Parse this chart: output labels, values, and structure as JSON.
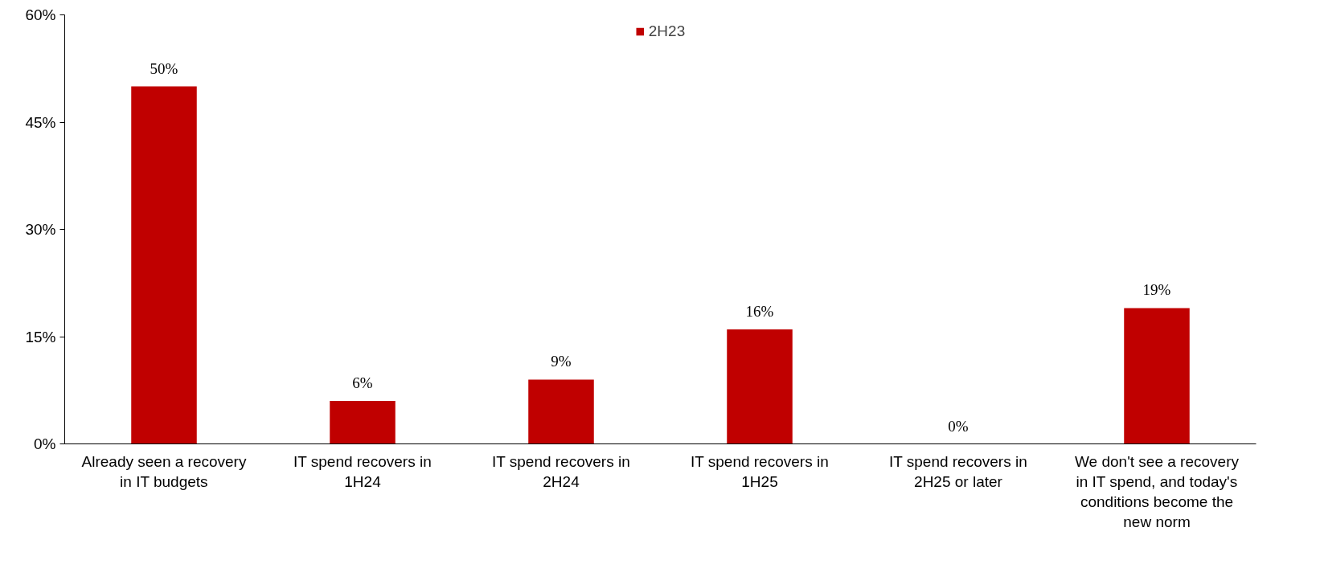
{
  "chart_data": {
    "type": "bar",
    "categories": [
      "Already seen a recovery in IT budgets",
      "IT spend recovers in 1H24",
      "IT spend recovers in 2H24",
      "IT spend recovers in 1H25",
      "IT spend recovers in 2H25 or later",
      "We don't see a recovery in IT spend, and today's conditions become the new norm"
    ],
    "series": [
      {
        "name": "2H23",
        "color": "#c00000",
        "values": [
          50,
          6,
          9,
          16,
          0,
          19
        ],
        "value_labels": [
          "50%",
          "6%",
          "9%",
          "16%",
          "0%",
          "19%"
        ]
      }
    ],
    "ylim": [
      0,
      60
    ],
    "yticks": [
      {
        "value": 0,
        "label": "0%"
      },
      {
        "value": 15,
        "label": "15%"
      },
      {
        "value": 30,
        "label": "30%"
      },
      {
        "value": 45,
        "label": "45%"
      },
      {
        "value": 60,
        "label": "60%"
      }
    ],
    "grid": false,
    "legend": "top"
  }
}
